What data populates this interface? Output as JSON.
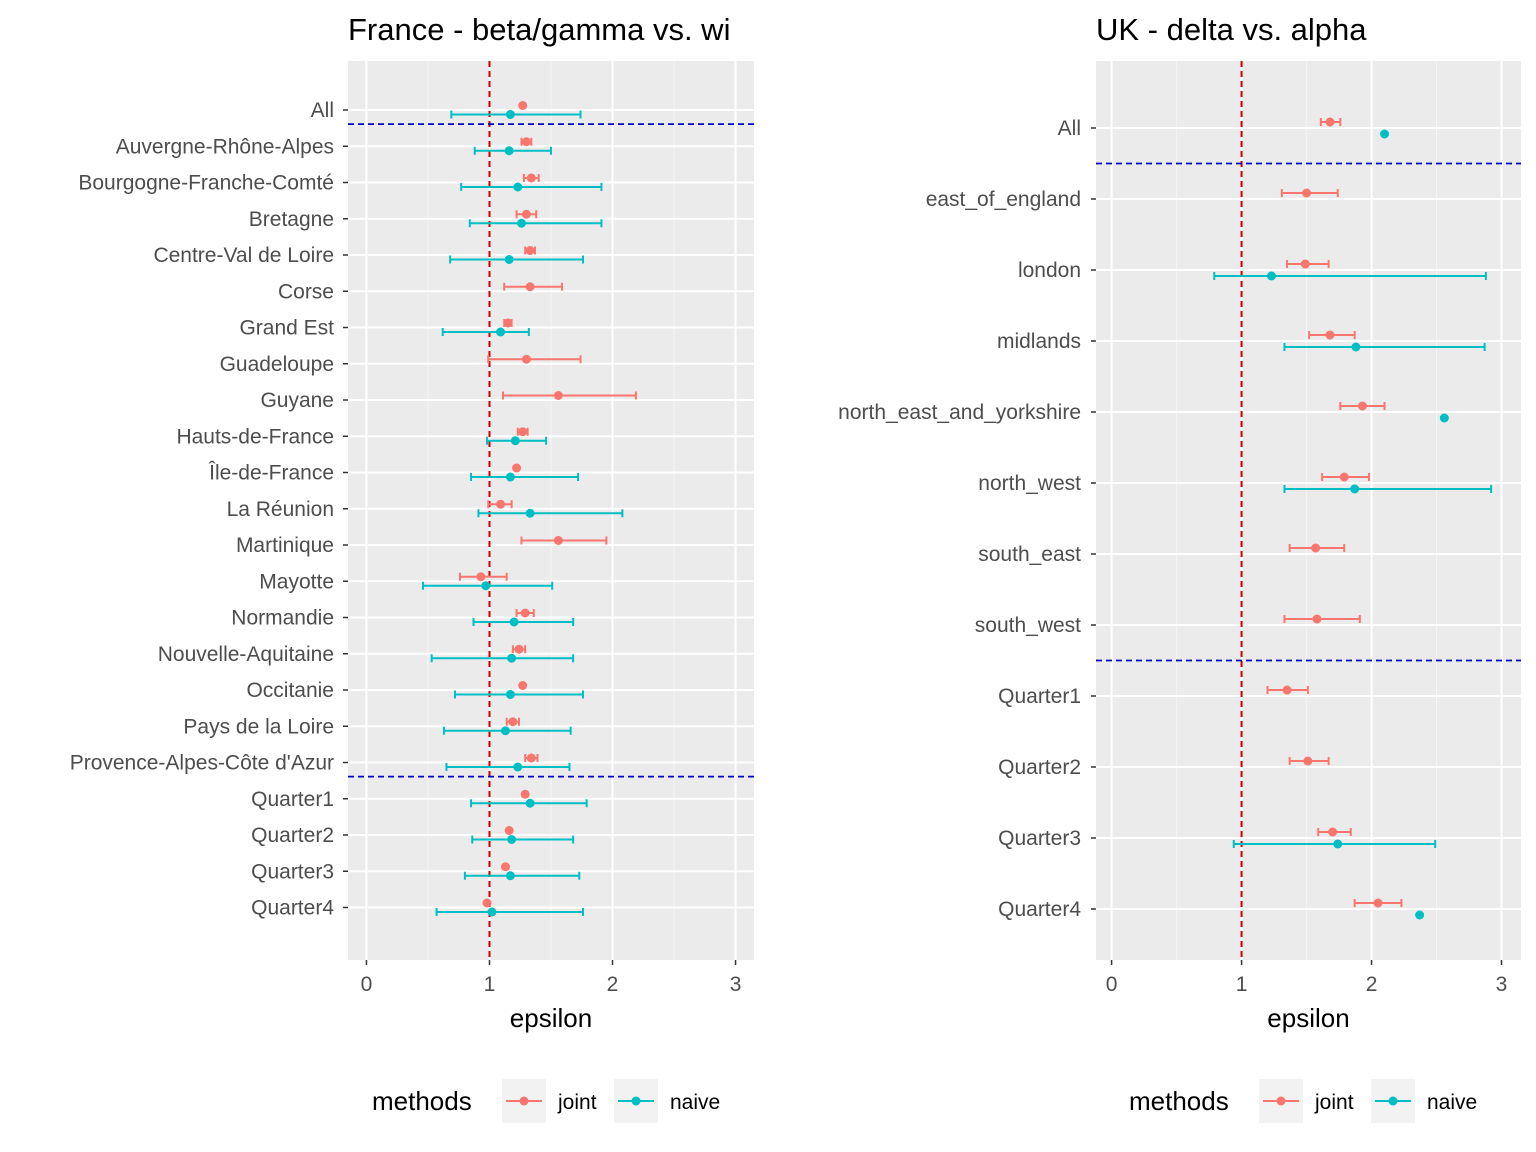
{
  "chart_data": [
    {
      "type": "scatter",
      "title": "France - beta/gamma vs. wi",
      "xlabel": "epsilon",
      "ylabel": "",
      "xlim": [
        -0.15,
        3.15
      ],
      "xticks": [
        0,
        1,
        2,
        3
      ],
      "xtick_labels": [
        "0",
        "1",
        "2",
        "3"
      ],
      "reference_line_x": 1,
      "reference_line_color": "#cc0000",
      "separator_after_rows": [
        "All",
        "Provence-Alpes-Côte d'Azur"
      ],
      "separator_color": "#0000cc",
      "grid": true,
      "categories": [
        "All",
        "Auvergne-Rhône-Alpes",
        "Bourgogne-Franche-Comté",
        "Bretagne",
        "Centre-Val de Loire",
        "Corse",
        "Grand Est",
        "Guadeloupe",
        "Guyane",
        "Hauts-de-France",
        "Île-de-France",
        "La Réunion",
        "Martinique",
        "Mayotte",
        "Normandie",
        "Nouvelle-Aquitaine",
        "Occitanie",
        "Pays de la Loire",
        "Provence-Alpes-Côte d'Azur",
        "Quarter1",
        "Quarter2",
        "Quarter3",
        "Quarter4"
      ],
      "series": [
        {
          "name": "joint",
          "color": "#f8766d",
          "points": [
            {
              "y": "All",
              "x": 1.27,
              "low": 1.27,
              "high": 1.27
            },
            {
              "y": "Auvergne-Rhône-Alpes",
              "x": 1.3,
              "low": 1.26,
              "high": 1.34
            },
            {
              "y": "Bourgogne-Franche-Comté",
              "x": 1.34,
              "low": 1.28,
              "high": 1.4
            },
            {
              "y": "Bretagne",
              "x": 1.3,
              "low": 1.22,
              "high": 1.38
            },
            {
              "y": "Centre-Val de Loire",
              "x": 1.33,
              "low": 1.29,
              "high": 1.37
            },
            {
              "y": "Corse",
              "x": 1.33,
              "low": 1.12,
              "high": 1.59
            },
            {
              "y": "Grand Est",
              "x": 1.15,
              "low": 1.12,
              "high": 1.18
            },
            {
              "y": "Guadeloupe",
              "x": 1.3,
              "low": 0.99,
              "high": 1.74
            },
            {
              "y": "Guyane",
              "x": 1.56,
              "low": 1.11,
              "high": 2.19
            },
            {
              "y": "Hauts-de-France",
              "x": 1.27,
              "low": 1.23,
              "high": 1.31
            },
            {
              "y": "Île-de-France",
              "x": 1.22,
              "low": 1.22,
              "high": 1.22
            },
            {
              "y": "La Réunion",
              "x": 1.09,
              "low": 0.99,
              "high": 1.18
            },
            {
              "y": "Martinique",
              "x": 1.56,
              "low": 1.26,
              "high": 1.95
            },
            {
              "y": "Mayotte",
              "x": 0.93,
              "low": 0.76,
              "high": 1.14
            },
            {
              "y": "Normandie",
              "x": 1.29,
              "low": 1.22,
              "high": 1.36
            },
            {
              "y": "Nouvelle-Aquitaine",
              "x": 1.24,
              "low": 1.19,
              "high": 1.29
            },
            {
              "y": "Occitanie",
              "x": 1.27,
              "low": 1.27,
              "high": 1.27
            },
            {
              "y": "Pays de la Loire",
              "x": 1.19,
              "low": 1.14,
              "high": 1.24
            },
            {
              "y": "Provence-Alpes-Côte d'Azur",
              "x": 1.34,
              "low": 1.29,
              "high": 1.39
            },
            {
              "y": "Quarter1",
              "x": 1.29,
              "low": 1.29,
              "high": 1.29
            },
            {
              "y": "Quarter2",
              "x": 1.16,
              "low": 1.16,
              "high": 1.16
            },
            {
              "y": "Quarter3",
              "x": 1.13,
              "low": 1.13,
              "high": 1.13
            },
            {
              "y": "Quarter4",
              "x": 0.98,
              "low": 0.98,
              "high": 0.98
            }
          ]
        },
        {
          "name": "naive",
          "color": "#00bfc4",
          "points": [
            {
              "y": "All",
              "x": 1.17,
              "low": 0.69,
              "high": 1.74
            },
            {
              "y": "Auvergne-Rhône-Alpes",
              "x": 1.16,
              "low": 0.88,
              "high": 1.5
            },
            {
              "y": "Bourgogne-Franche-Comté",
              "x": 1.23,
              "low": 0.77,
              "high": 1.91
            },
            {
              "y": "Bretagne",
              "x": 1.26,
              "low": 0.84,
              "high": 1.91
            },
            {
              "y": "Centre-Val de Loire",
              "x": 1.16,
              "low": 0.68,
              "high": 1.76
            },
            {
              "y": "Grand Est",
              "x": 1.09,
              "low": 0.62,
              "high": 1.32
            },
            {
              "y": "Hauts-de-France",
              "x": 1.21,
              "low": 0.98,
              "high": 1.46
            },
            {
              "y": "Île-de-France",
              "x": 1.17,
              "low": 0.85,
              "high": 1.72
            },
            {
              "y": "La Réunion",
              "x": 1.33,
              "low": 0.91,
              "high": 2.08
            },
            {
              "y": "Mayotte",
              "x": 0.97,
              "low": 0.46,
              "high": 1.51
            },
            {
              "y": "Normandie",
              "x": 1.2,
              "low": 0.87,
              "high": 1.68
            },
            {
              "y": "Nouvelle-Aquitaine",
              "x": 1.18,
              "low": 0.53,
              "high": 1.68
            },
            {
              "y": "Occitanie",
              "x": 1.17,
              "low": 0.72,
              "high": 1.76
            },
            {
              "y": "Pays de la Loire",
              "x": 1.13,
              "low": 0.63,
              "high": 1.66
            },
            {
              "y": "Provence-Alpes-Côte d'Azur",
              "x": 1.23,
              "low": 0.65,
              "high": 1.65
            },
            {
              "y": "Quarter1",
              "x": 1.33,
              "low": 0.85,
              "high": 1.79
            },
            {
              "y": "Quarter2",
              "x": 1.18,
              "low": 0.86,
              "high": 1.68
            },
            {
              "y": "Quarter3",
              "x": 1.17,
              "low": 0.8,
              "high": 1.73
            },
            {
              "y": "Quarter4",
              "x": 1.02,
              "low": 0.57,
              "high": 1.76
            }
          ]
        }
      ],
      "legend": {
        "title": "methods",
        "entries": [
          "joint",
          "naive"
        ],
        "position": "bottom"
      }
    },
    {
      "type": "scatter",
      "title": "UK - delta vs. alpha",
      "xlabel": "epsilon",
      "ylabel": "",
      "xlim": [
        -0.12,
        3.15
      ],
      "xticks": [
        0,
        1,
        2,
        3
      ],
      "xtick_labels": [
        "0",
        "1",
        "2",
        "3"
      ],
      "reference_line_x": 1,
      "reference_line_color": "#cc0000",
      "separator_after_rows": [
        "All",
        "south_west"
      ],
      "separator_color": "#0000cc",
      "grid": true,
      "categories": [
        "All",
        "east_of_england",
        "london",
        "midlands",
        "north_east_and_yorkshire",
        "north_west",
        "south_east",
        "south_west",
        "Quarter1",
        "Quarter2",
        "Quarter3",
        "Quarter4"
      ],
      "series": [
        {
          "name": "joint",
          "color": "#f8766d",
          "points": [
            {
              "y": "All",
              "x": 1.68,
              "low": 1.61,
              "high": 1.76
            },
            {
              "y": "east_of_england",
              "x": 1.5,
              "low": 1.31,
              "high": 1.74
            },
            {
              "y": "london",
              "x": 1.49,
              "low": 1.35,
              "high": 1.67
            },
            {
              "y": "midlands",
              "x": 1.68,
              "low": 1.52,
              "high": 1.87
            },
            {
              "y": "north_east_and_yorkshire",
              "x": 1.93,
              "low": 1.76,
              "high": 2.1
            },
            {
              "y": "north_west",
              "x": 1.79,
              "low": 1.62,
              "high": 1.98
            },
            {
              "y": "south_east",
              "x": 1.57,
              "low": 1.37,
              "high": 1.79
            },
            {
              "y": "south_west",
              "x": 1.58,
              "low": 1.33,
              "high": 1.91
            },
            {
              "y": "Quarter1",
              "x": 1.35,
              "low": 1.2,
              "high": 1.51
            },
            {
              "y": "Quarter2",
              "x": 1.51,
              "low": 1.37,
              "high": 1.67
            },
            {
              "y": "Quarter3",
              "x": 1.7,
              "low": 1.59,
              "high": 1.84
            },
            {
              "y": "Quarter4",
              "x": 2.05,
              "low": 1.87,
              "high": 2.23
            }
          ]
        },
        {
          "name": "naive",
          "color": "#00bfc4",
          "points": [
            {
              "y": "All",
              "x": 2.1,
              "low": 2.1,
              "high": 2.1
            },
            {
              "y": "london",
              "x": 1.23,
              "low": 0.79,
              "high": 2.88
            },
            {
              "y": "midlands",
              "x": 1.88,
              "low": 1.33,
              "high": 2.87
            },
            {
              "y": "north_east_and_yorkshire",
              "x": 2.56,
              "low": 2.56,
              "high": 2.56
            },
            {
              "y": "north_west",
              "x": 1.87,
              "low": 1.33,
              "high": 2.92
            },
            {
              "y": "Quarter3",
              "x": 1.74,
              "low": 0.94,
              "high": 2.49
            },
            {
              "y": "Quarter4",
              "x": 2.37,
              "low": 2.37,
              "high": 2.37
            }
          ]
        }
      ],
      "legend": {
        "title": "methods",
        "entries": [
          "joint",
          "naive"
        ],
        "position": "bottom"
      }
    }
  ]
}
